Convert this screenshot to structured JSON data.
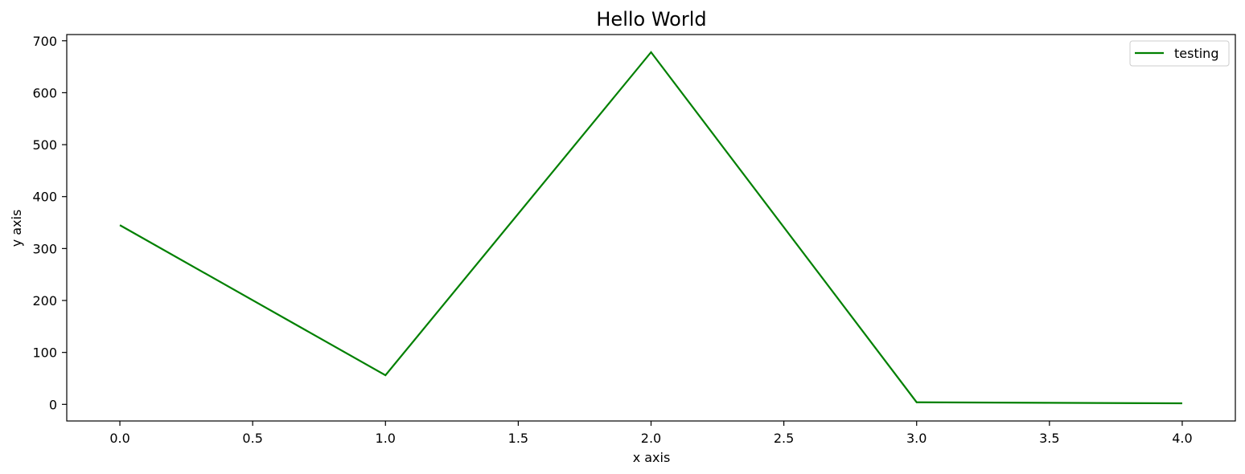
{
  "chart_data": {
    "type": "line",
    "title": "Hello World",
    "xlabel": "x axis",
    "ylabel": "y axis",
    "x": [
      0,
      1,
      2,
      3,
      4
    ],
    "series": [
      {
        "name": "testing",
        "color": "#008000",
        "values": [
          345,
          56,
          678,
          4,
          2
        ]
      }
    ],
    "xlim": [
      -0.2,
      4.2
    ],
    "ylim": [
      -32,
      712
    ],
    "xticks": [
      0.0,
      0.5,
      1.0,
      1.5,
      2.0,
      2.5,
      3.0,
      3.5,
      4.0
    ],
    "xtick_labels": [
      "0.0",
      "0.5",
      "1.0",
      "1.5",
      "2.0",
      "2.5",
      "3.0",
      "3.5",
      "4.0"
    ],
    "yticks": [
      0,
      100,
      200,
      300,
      400,
      500,
      600,
      700
    ],
    "ytick_labels": [
      "0",
      "100",
      "200",
      "300",
      "400",
      "500",
      "600",
      "700"
    ],
    "grid": false,
    "legend_position": "top-right"
  }
}
